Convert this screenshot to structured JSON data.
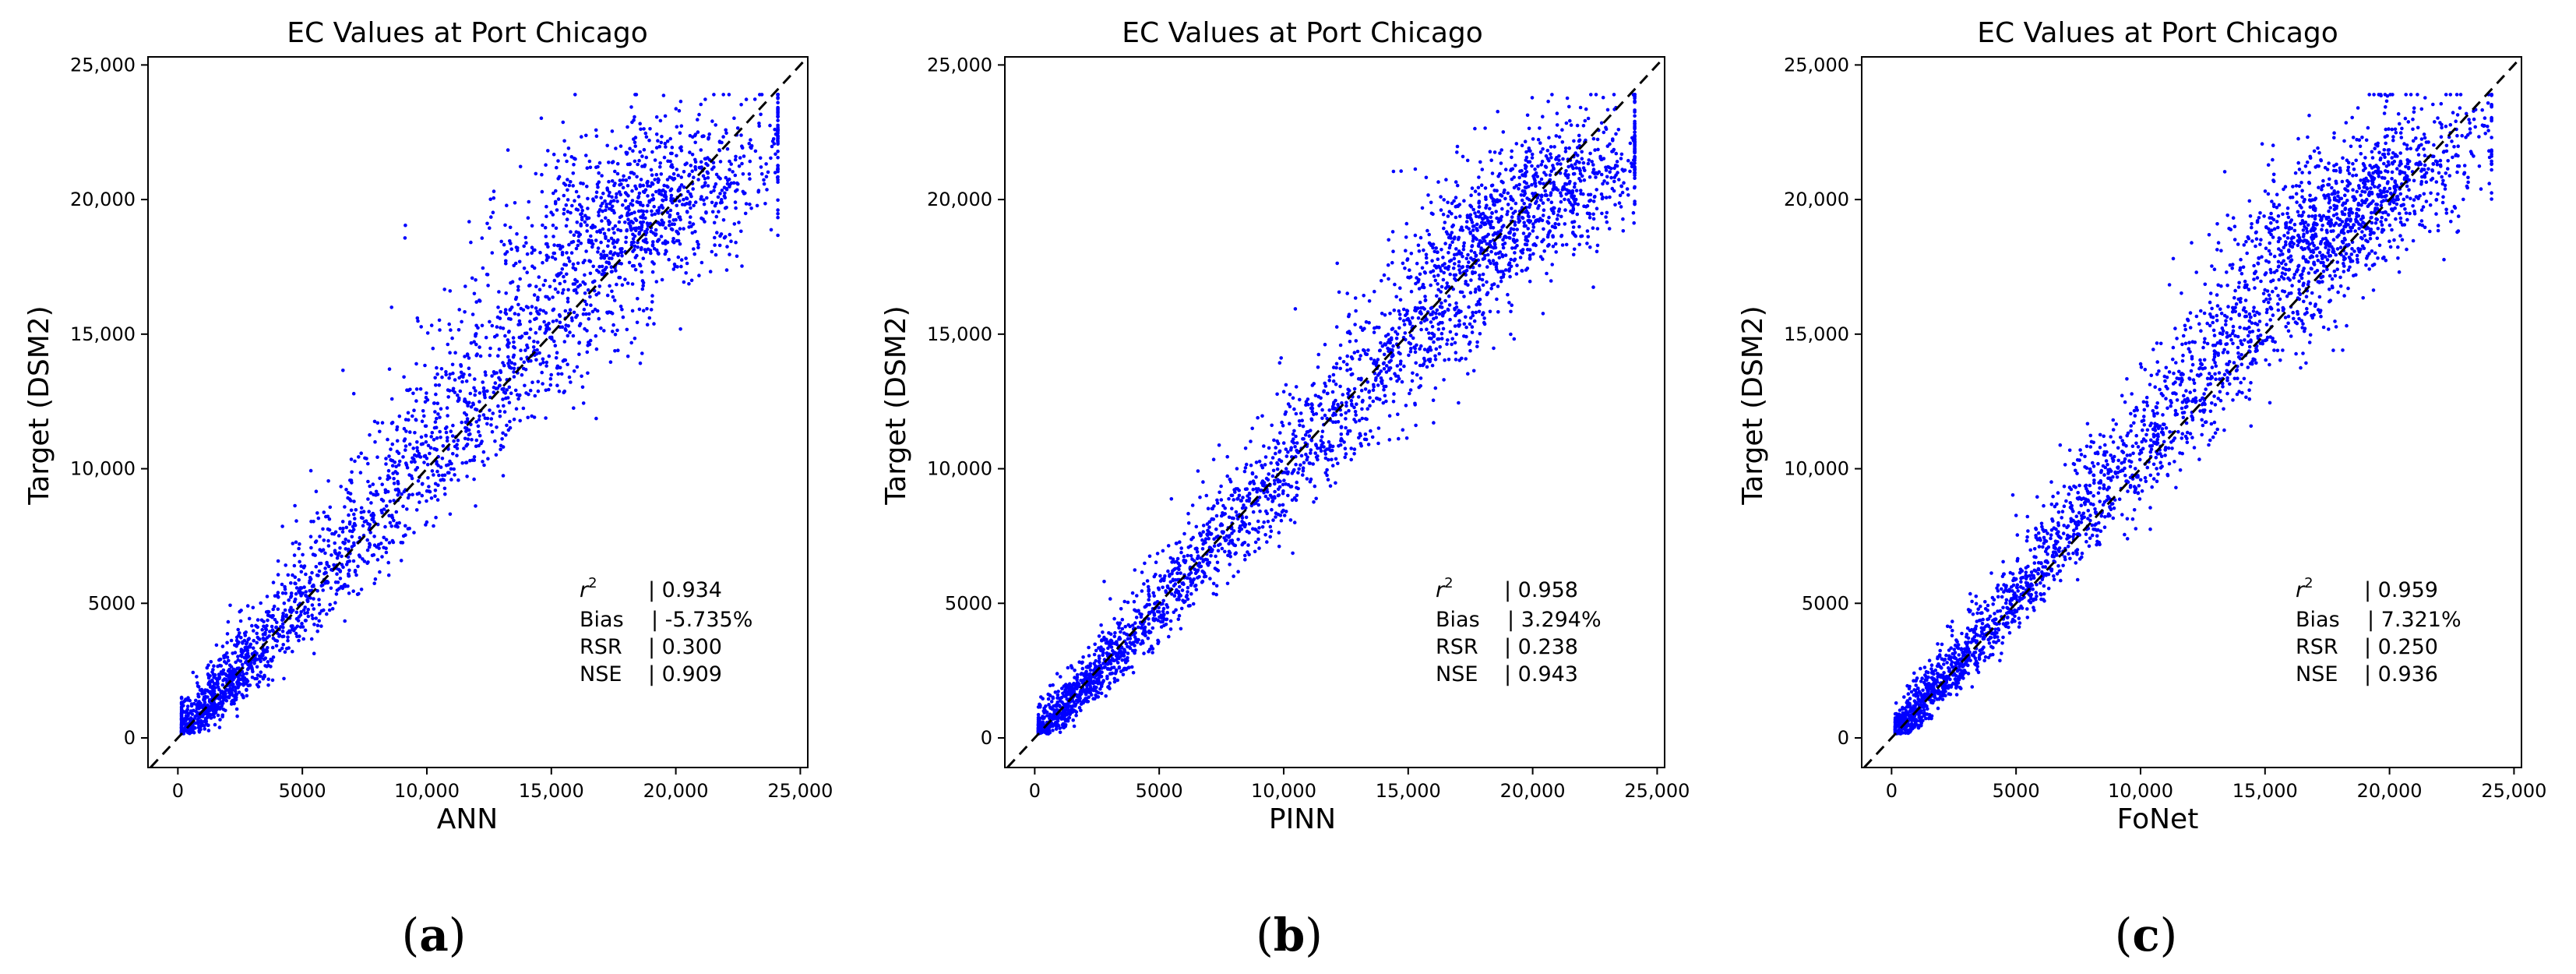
{
  "chart_data": [
    {
      "type": "scatter",
      "title": "EC Values at Port Chicago",
      "xlabel": "ANN",
      "ylabel": "Target (DSM2)",
      "xlim": [
        -1200,
        25300
      ],
      "ylim": [
        -1100,
        25300
      ],
      "xticks": [
        0,
        5000,
        10000,
        15000,
        20000,
        25000
      ],
      "xtick_labels": [
        "0",
        "5000",
        "10,000",
        "15,000",
        "20,000",
        "25,000"
      ],
      "yticks": [
        0,
        5000,
        10000,
        15000,
        20000,
        25000
      ],
      "ytick_labels": [
        "0",
        "5000",
        "10,000",
        "15,000",
        "20,000",
        "25,000"
      ],
      "reference_line": "y = x (dashed black)",
      "point_color": "#0000ff",
      "panel_letter": "a",
      "stats": [
        {
          "label_base": "r",
          "label_sup": "2",
          "value": "| 0.934"
        },
        {
          "label": "Bias",
          "value": "| -5.735%"
        },
        {
          "label": "RSR",
          "value": "| 0.300"
        },
        {
          "label": "NSE",
          "value": "| 0.909"
        }
      ],
      "spread": {
        "bias_factor": 1.04,
        "sd_low": 420,
        "sd_frac": 0.11
      }
    },
    {
      "type": "scatter",
      "title": "EC Values at Port Chicago",
      "xlabel": "PINN",
      "ylabel": "Target (DSM2)",
      "xlim": [
        -1200,
        25300
      ],
      "ylim": [
        -1100,
        25300
      ],
      "xticks": [
        0,
        5000,
        10000,
        15000,
        20000,
        25000
      ],
      "xtick_labels": [
        "0",
        "5000",
        "10,000",
        "15,000",
        "20,000",
        "25,000"
      ],
      "yticks": [
        0,
        5000,
        10000,
        15000,
        20000,
        25000
      ],
      "ytick_labels": [
        "0",
        "5000",
        "10,000",
        "15,000",
        "20,000",
        "25,000"
      ],
      "reference_line": "y = x (dashed black)",
      "point_color": "#0000ff",
      "panel_letter": "b",
      "stats": [
        {
          "label_base": "r",
          "label_sup": "2",
          "value": "| 0.958"
        },
        {
          "label": "Bias",
          "value": "| 3.294%"
        },
        {
          "label": "RSR",
          "value": "| 0.238"
        },
        {
          "label": "NSE",
          "value": "| 0.943"
        }
      ],
      "spread": {
        "bias_factor": 0.985,
        "sd_low": 360,
        "sd_frac": 0.085
      }
    },
    {
      "type": "scatter",
      "title": "EC Values at Port Chicago",
      "xlabel": "FoNet",
      "ylabel": "Target (DSM2)",
      "xlim": [
        -1200,
        25300
      ],
      "ylim": [
        -1100,
        25300
      ],
      "xticks": [
        0,
        5000,
        10000,
        15000,
        20000,
        25000
      ],
      "xtick_labels": [
        "0",
        "5000",
        "10,000",
        "15,000",
        "20,000",
        "25,000"
      ],
      "yticks": [
        0,
        5000,
        10000,
        15000,
        20000,
        25000
      ],
      "ytick_labels": [
        "0",
        "5000",
        "10,000",
        "15,000",
        "20,000",
        "25,000"
      ],
      "reference_line": "y = x (dashed black)",
      "point_color": "#0000ff",
      "panel_letter": "c",
      "stats": [
        {
          "label_base": "r",
          "label_sup": "2",
          "value": "| 0.959"
        },
        {
          "label": "Bias",
          "value": "| 7.321%"
        },
        {
          "label": "RSR",
          "value": "| 0.250"
        },
        {
          "label": "NSE",
          "value": "| 0.936"
        }
      ],
      "spread": {
        "bias_factor": 1.065,
        "sd_low": 330,
        "sd_frac": 0.08
      }
    }
  ]
}
